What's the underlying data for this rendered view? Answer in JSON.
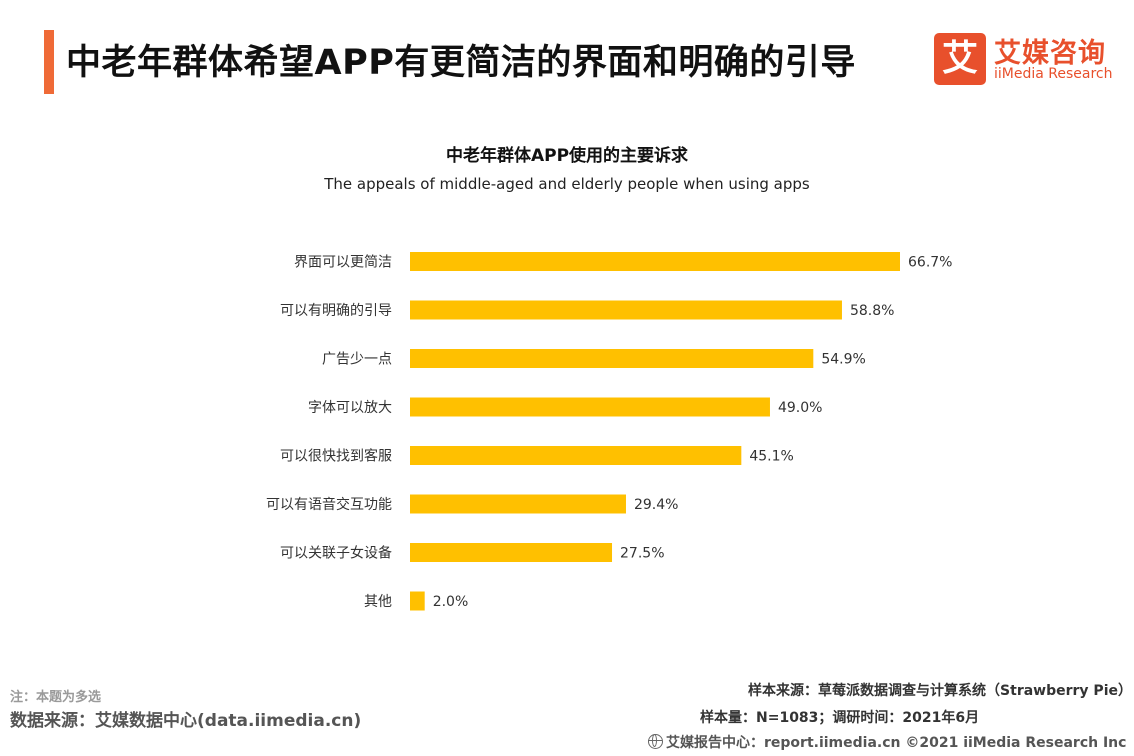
{
  "header": {
    "title": "中老年群体希望APP有更简洁的界面和明确的引导",
    "accent_color": "#ef6a37"
  },
  "logo": {
    "mark": "艾",
    "name_cn": "艾媒咨询",
    "name_en": "iiMedia Research",
    "color": "#e8502c"
  },
  "chart_data": {
    "type": "bar",
    "orientation": "horizontal",
    "title": "中老年群体APP使用的主要诉求",
    "subtitle": "The appeals of middle-aged and elderly people when using apps",
    "categories": [
      "界面可以更简洁",
      "可以有明确的引导",
      "广告少一点",
      "字体可以放大",
      "可以很快找到客服",
      "可以有语音交互功能",
      "可以关联子女设备",
      "其他"
    ],
    "values": [
      66.7,
      58.8,
      54.9,
      49.0,
      45.1,
      29.4,
      27.5,
      2.0
    ],
    "value_labels": [
      "66.7%",
      "58.8%",
      "54.9%",
      "49.0%",
      "45.1%",
      "29.4%",
      "27.5%",
      "2.0%"
    ],
    "unit": "%",
    "bar_color": "#ffc000",
    "xlim": [
      0,
      66.7
    ],
    "grid": false,
    "legend": "none"
  },
  "footer": {
    "note": "注：本题为多选",
    "data_source": "数据来源：艾媒数据中心(data.iimedia.cn)",
    "sample_source": "样本来源：草莓派数据调查与计算系统（Strawberry Pie）",
    "sample_size": "样本量：N=1083；调研时间：2021年6月",
    "report_center": "艾媒报告中心：report.iimedia.cn ©2021 iiMedia Research Inc",
    "globe_icon": "globe-icon"
  }
}
